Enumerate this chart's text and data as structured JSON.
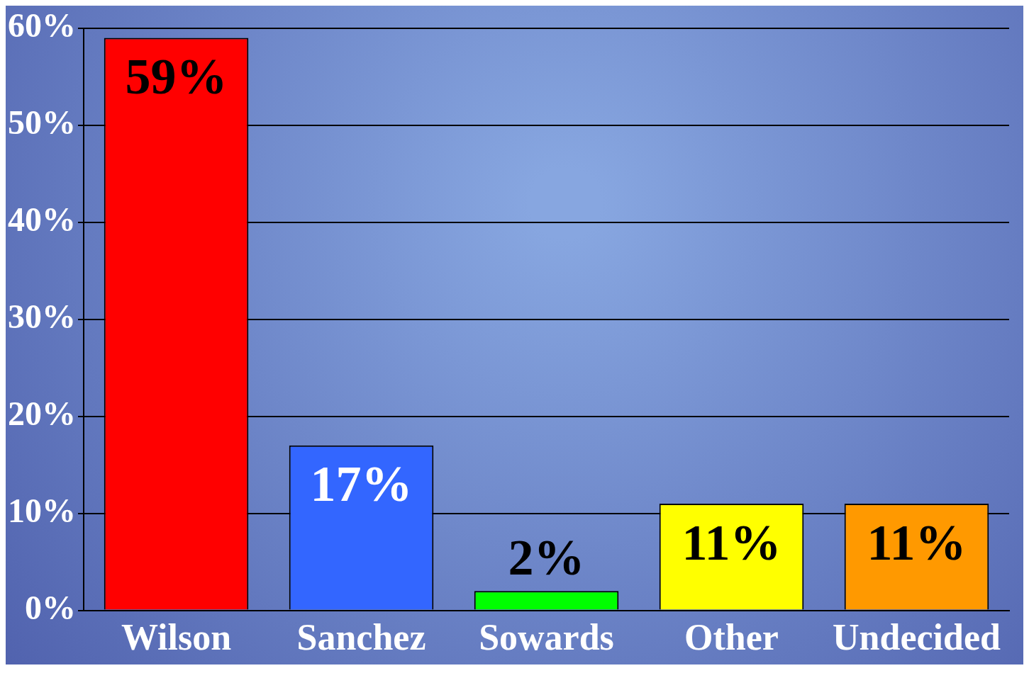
{
  "chart_data": {
    "type": "bar",
    "categories": [
      "Wilson",
      "Sanchez",
      "Sowards",
      "Other",
      "Undecided"
    ],
    "values": [
      59,
      17,
      2,
      11,
      11
    ],
    "colors": [
      "#ff0000",
      "#3366ff",
      "#00ff00",
      "#ffff00",
      "#ff9900"
    ],
    "value_labels": [
      "59%",
      "17%",
      "2%",
      "11%",
      "11%"
    ],
    "ylim": [
      0,
      60
    ],
    "yticks": [
      {
        "value": 0,
        "label": "0%"
      },
      {
        "value": 10,
        "label": "10%"
      },
      {
        "value": 20,
        "label": "20%"
      },
      {
        "value": 30,
        "label": "30%"
      },
      {
        "value": 40,
        "label": "40%"
      },
      {
        "value": 50,
        "label": "50%"
      },
      {
        "value": 60,
        "label": "60%"
      }
    ],
    "grid": "y",
    "legend": false
  }
}
